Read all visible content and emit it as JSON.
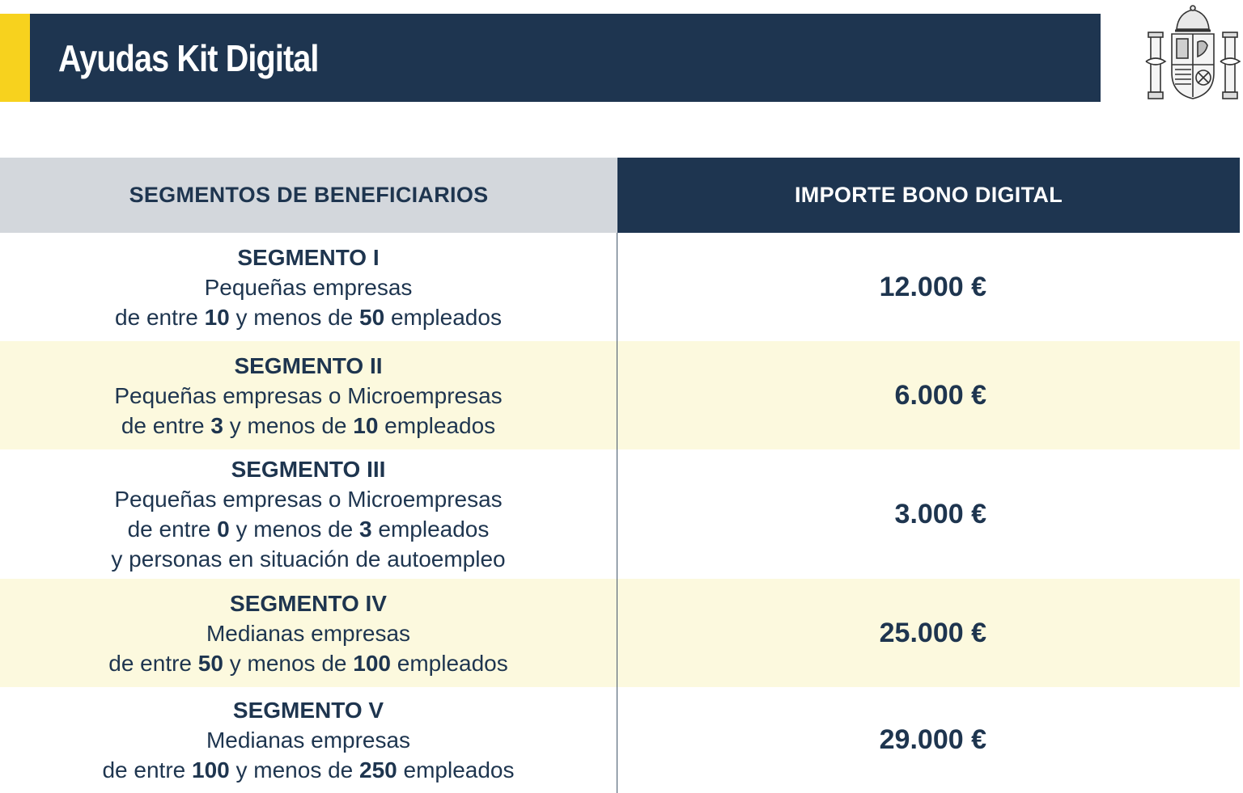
{
  "header": {
    "title": "Ayudas Kit Digital",
    "logo": "spain-coat-of-arms"
  },
  "colors": {
    "navy": "#1e3550",
    "accent_yellow": "#f7d21e",
    "header_gray": "#d3d7dc",
    "row_highlight": "#fcf9de"
  },
  "table": {
    "columns": [
      "SEGMENTOS DE BENEFICIARIOS",
      "IMPORTE BONO DIGITAL"
    ],
    "rows": [
      {
        "segment": "SEGMENTO I",
        "line1": "Pequeñas empresas",
        "line2": [
          "de entre ",
          "10",
          " y menos de ",
          "50",
          " empleados"
        ],
        "amount": "12.000 €"
      },
      {
        "segment": "SEGMENTO II",
        "line1": "Pequeñas empresas o Microempresas",
        "line2": [
          "de entre ",
          "3",
          " y menos de ",
          "10",
          " empleados"
        ],
        "amount": "6.000 €"
      },
      {
        "segment": "SEGMENTO III",
        "line1": "Pequeñas empresas o Microempresas",
        "line2": [
          "de entre ",
          "0",
          " y menos de ",
          "3",
          " empleados"
        ],
        "line3": "y personas en situación de autoempleo",
        "amount": "3.000 €"
      },
      {
        "segment": "SEGMENTO IV",
        "line1": "Medianas empresas",
        "line2": [
          "de entre ",
          "50",
          " y menos de ",
          "100",
          " empleados"
        ],
        "amount": "25.000 €"
      },
      {
        "segment": "SEGMENTO V",
        "line1": "Medianas empresas",
        "line2": [
          "de entre ",
          "100",
          " y menos de ",
          "250",
          " empleados"
        ],
        "amount": "29.000 €"
      }
    ]
  }
}
